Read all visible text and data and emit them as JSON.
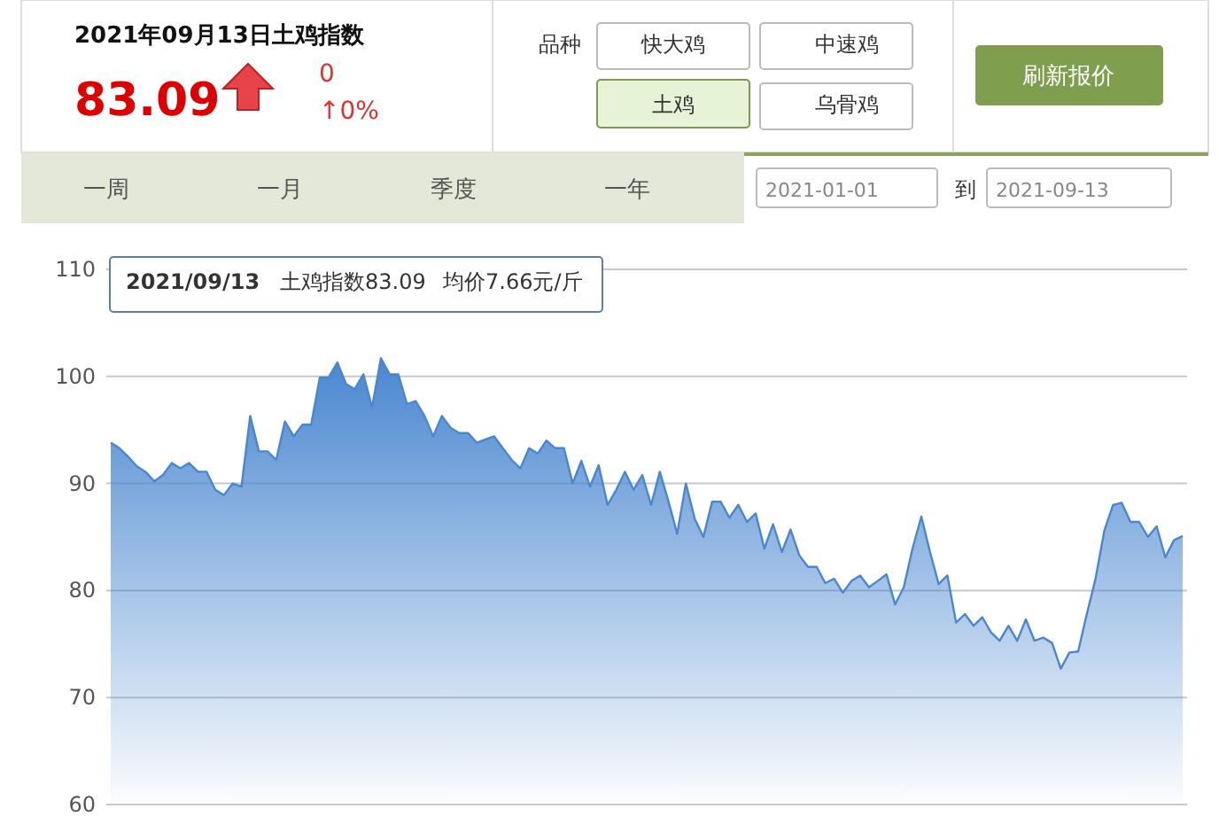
{
  "chart_data": {
    "type": "area",
    "title": "2021年09月13日土鸡指数",
    "categories": [
      null,
      null,
      null,
      null,
      null,
      null,
      null,
      null,
      null,
      null,
      null,
      null,
      null,
      null,
      null,
      null,
      null,
      null,
      null,
      null,
      null,
      null,
      null,
      null,
      null,
      null,
      null,
      null,
      null,
      null,
      null,
      null,
      null,
      null,
      null,
      null,
      null,
      null,
      null,
      null,
      null,
      null,
      null,
      null,
      null,
      null,
      null,
      null,
      null,
      null,
      null,
      null,
      null,
      null,
      null,
      null,
      null,
      null,
      null,
      null,
      null,
      null,
      null,
      null,
      null,
      null,
      null,
      null,
      null,
      null,
      null,
      null,
      null,
      null,
      null,
      null,
      null,
      null,
      null,
      null,
      null,
      null,
      null,
      null,
      null,
      null,
      null,
      null,
      null,
      null,
      null,
      null,
      null,
      null,
      null,
      null,
      null,
      null,
      null,
      null,
      null,
      null,
      null,
      null,
      null,
      null,
      null,
      null,
      null,
      null,
      null,
      null,
      null,
      null,
      null,
      null,
      null,
      null,
      null,
      null,
      null,
      null,
      null,
      null
    ],
    "values": [
      93.8,
      93.3,
      92.5,
      91.6,
      91.1,
      90.2,
      90.8,
      91.9,
      91.4,
      91.9,
      91.1,
      91.1,
      89.4,
      88.9,
      90.0,
      89.7,
      96.3,
      93.0,
      93.0,
      92.2,
      95.8,
      94.4,
      95.5,
      95.5,
      99.9,
      99.9,
      101.3,
      99.3,
      98.8,
      100.2,
      97.1,
      101.7,
      100.2,
      100.2,
      97.4,
      97.7,
      96.3,
      94.4,
      96.3,
      95.2,
      94.7,
      94.7,
      93.8,
      94.1,
      94.4,
      93.3,
      92.2,
      91.4,
      93.3,
      92.8,
      94.0,
      93.3,
      93.3,
      90.0,
      92.1,
      89.7,
      91.7,
      88.0,
      89.4,
      91.1,
      89.4,
      90.8,
      88.0,
      91.1,
      88.3,
      85.3,
      90.0,
      86.7,
      85.0,
      88.3,
      88.3,
      86.8,
      88.0,
      86.4,
      87.2,
      83.9,
      86.2,
      83.6,
      85.7,
      83.3,
      82.2,
      82.2,
      80.7,
      81.1,
      79.8,
      80.9,
      81.4,
      80.3,
      80.9,
      81.5,
      78.7,
      80.3,
      83.9,
      86.9,
      83.6,
      80.6,
      81.4,
      77.0,
      77.8,
      76.7,
      77.5,
      76.1,
      75.3,
      76.7,
      75.3,
      77.3,
      75.3,
      75.6,
      75.1,
      72.7,
      74.2,
      74.3,
      77.8,
      81.1,
      85.6,
      88.0,
      88.2,
      86.4,
      86.4,
      85.0,
      86.0,
      83.1,
      84.7,
      85.1
    ],
    "color": "#4a87d0",
    "ylim": [
      60,
      110
    ],
    "yticks": [
      60,
      70,
      80,
      90,
      100,
      110
    ],
    "grid": "y",
    "annotations": [
      "83.09",
      "0",
      "↑0%",
      "品种",
      "快大鸡",
      "中速鸡",
      "土鸡",
      "乌骨鸡",
      "刷新报价",
      "一周",
      "一月",
      "季度",
      "一年",
      "2021-01-01",
      "到",
      "2021-09-13",
      "2021/09/13",
      "土鸡指数83.09",
      "均价7.66元/斤"
    ]
  }
}
